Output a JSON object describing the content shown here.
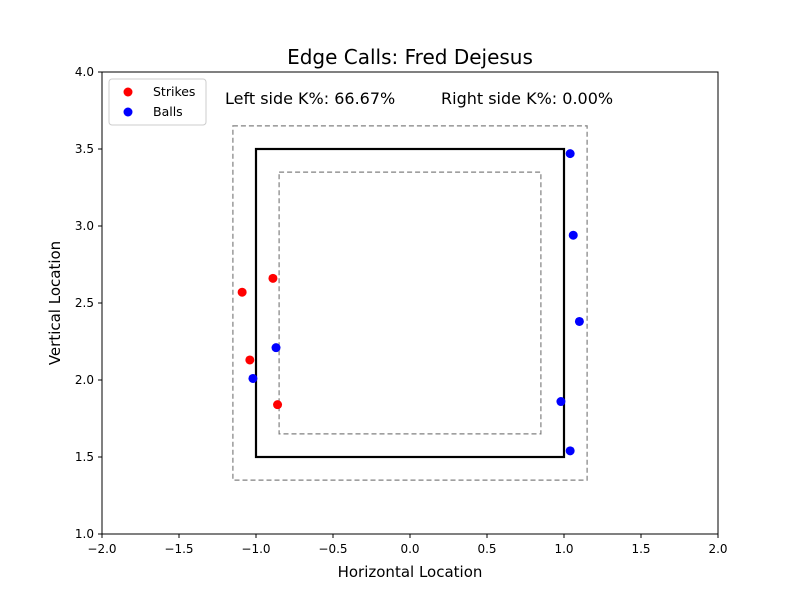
{
  "chart_data": {
    "type": "scatter",
    "title": "Edge Calls: Fred Dejesus",
    "xlabel": "Horizontal Location",
    "ylabel": "Vertical Location",
    "xlim": [
      -2.0,
      2.0
    ],
    "ylim": [
      1.0,
      4.0
    ],
    "x_ticks": [
      "−2.0",
      "−1.5",
      "−1.0",
      "−0.5",
      "0.0",
      "0.5",
      "1.0",
      "1.5",
      "2.0"
    ],
    "x_tick_values": [
      -2.0,
      -1.5,
      -1.0,
      -0.5,
      0.0,
      0.5,
      1.0,
      1.5,
      2.0
    ],
    "y_ticks": [
      "1.0",
      "1.5",
      "2.0",
      "2.5",
      "3.0",
      "3.5",
      "4.0"
    ],
    "y_tick_values": [
      1.0,
      1.5,
      2.0,
      2.5,
      3.0,
      3.5,
      4.0
    ],
    "grid": false,
    "legend_position": "top-left",
    "series": [
      {
        "name": "Strikes",
        "color": "#ff0000",
        "x": [
          -1.09,
          -0.89,
          -1.04,
          -0.86
        ],
        "y": [
          2.57,
          2.66,
          2.13,
          1.84
        ]
      },
      {
        "name": "Balls",
        "color": "#0000ff",
        "x": [
          -0.87,
          -1.02,
          1.04,
          1.06,
          1.1,
          0.98,
          1.04
        ],
        "y": [
          2.21,
          2.01,
          3.47,
          2.94,
          2.38,
          1.86,
          1.54
        ]
      }
    ],
    "zones": {
      "strike_zone": {
        "x": [
          -1.0,
          1.0
        ],
        "y": [
          1.5,
          3.5
        ],
        "style": "solid",
        "color": "#000000"
      },
      "outer_edge": {
        "x": [
          -1.15,
          1.15
        ],
        "y": [
          1.35,
          3.65
        ],
        "style": "dashed",
        "color": "#808080"
      },
      "inner_edge": {
        "x": [
          -0.85,
          0.85
        ],
        "y": [
          1.65,
          3.35
        ],
        "style": "dashed",
        "color": "#808080"
      }
    },
    "annotations": {
      "left": "Left side K%: 66.67%",
      "right": "Right side K%: 0.00%"
    }
  }
}
